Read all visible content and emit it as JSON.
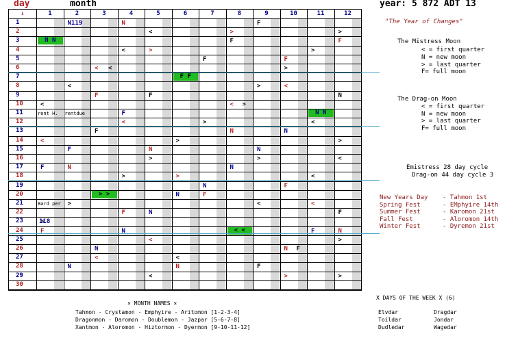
{
  "header": {
    "day_label": "day",
    "month_label": "month",
    "year_label": "year: 5 872 ADT 13"
  },
  "grid": {
    "corner_arrow": "↓",
    "columns": [
      "1",
      "2",
      "3",
      "4",
      "5",
      "6",
      "7",
      "8",
      "9",
      "10",
      "11",
      "12"
    ],
    "rows": [
      "1",
      "2",
      "3",
      "4",
      "5",
      "6",
      "7",
      "8",
      "9",
      "10",
      "11",
      "12",
      "13",
      "14",
      "15",
      "16",
      "17",
      "18",
      "19",
      "20",
      "21",
      "22",
      "23",
      "24",
      "25",
      "26",
      "27",
      "28",
      "29",
      "30"
    ],
    "notes": {
      "n119": "N119",
      "rent": "rent H.",
      "rentdue": "rentdue",
      "bard": "Bard per",
      "n118": "118"
    }
  },
  "marks": [
    {
      "row": 1,
      "col": 2,
      "t": "N119",
      "c": "#00008b"
    },
    {
      "row": 1,
      "col": 4,
      "t": "N",
      "c": "#b22222"
    },
    {
      "row": 1,
      "col": 9,
      "t": "F",
      "c": "#000"
    },
    {
      "row": 2,
      "col": 5,
      "t": "<",
      "c": "#000"
    },
    {
      "row": 2,
      "col": 8,
      "t": ">",
      "c": "#b22222"
    },
    {
      "row": 2,
      "col": 12,
      "t": ">",
      "c": "#000"
    },
    {
      "row": 3,
      "col": 8,
      "t": "F",
      "c": "#000"
    },
    {
      "row": 3,
      "col": 12,
      "t": "F",
      "c": "#b22222"
    },
    {
      "row": 4,
      "col": 4,
      "t": "<",
      "c": "#000"
    },
    {
      "row": 4,
      "col": 5,
      "t": ">",
      "c": "#b22222"
    },
    {
      "row": 4,
      "col": 11,
      "t": ">",
      "c": "#000"
    },
    {
      "row": 5,
      "col": 7,
      "t": "F",
      "c": "#000"
    },
    {
      "row": 5,
      "col": 10,
      "t": "F",
      "c": "#b22222"
    },
    {
      "row": 6,
      "col": 3,
      "t": "<",
      "c": "#b22222"
    },
    {
      "row": 6,
      "col": 3,
      "t": "<",
      "c": "#000",
      "dx": 20
    },
    {
      "row": 6,
      "col": 10,
      "t": ">",
      "c": "#000"
    },
    {
      "row": 8,
      "col": 2,
      "t": "<",
      "c": "#000"
    },
    {
      "row": 8,
      "col": 9,
      "t": ">",
      "c": "#000"
    },
    {
      "row": 8,
      "col": 10,
      "t": "<",
      "c": "#b22222"
    },
    {
      "row": 9,
      "col": 3,
      "t": "F",
      "c": "#b22222"
    },
    {
      "row": 9,
      "col": 5,
      "t": "F",
      "c": "#000"
    },
    {
      "row": 9,
      "col": 12,
      "t": "N",
      "c": "#000"
    },
    {
      "row": 10,
      "col": 1,
      "t": "<",
      "c": "#000"
    },
    {
      "row": 10,
      "col": 8,
      "t": "<",
      "c": "#b22222"
    },
    {
      "row": 10,
      "col": 8,
      "t": ">",
      "c": "#000",
      "dx": 18
    },
    {
      "row": 11,
      "col": 4,
      "t": "F",
      "c": "#00008b"
    },
    {
      "row": 12,
      "col": 4,
      "t": "<",
      "c": "#b22222"
    },
    {
      "row": 12,
      "col": 7,
      "t": ">",
      "c": "#000"
    },
    {
      "row": 12,
      "col": 11,
      "t": "<",
      "c": "#000"
    },
    {
      "row": 13,
      "col": 3,
      "t": "F",
      "c": "#000"
    },
    {
      "row": 13,
      "col": 8,
      "t": "N",
      "c": "#b22222"
    },
    {
      "row": 13,
      "col": 10,
      "t": "N",
      "c": "#00008b"
    },
    {
      "row": 14,
      "col": 1,
      "t": "<",
      "c": "#b22222"
    },
    {
      "row": 14,
      "col": 6,
      "t": ">",
      "c": "#000"
    },
    {
      "row": 14,
      "col": 12,
      "t": ">",
      "c": "#000"
    },
    {
      "row": 15,
      "col": 2,
      "t": "F",
      "c": "#00008b"
    },
    {
      "row": 15,
      "col": 5,
      "t": "N",
      "c": "#b22222"
    },
    {
      "row": 15,
      "col": 9,
      "t": "N",
      "c": "#00008b"
    },
    {
      "row": 16,
      "col": 5,
      "t": ">",
      "c": "#000"
    },
    {
      "row": 16,
      "col": 9,
      "t": ">",
      "c": "#000"
    },
    {
      "row": 16,
      "col": 12,
      "t": "<",
      "c": "#000"
    },
    {
      "row": 17,
      "col": 1,
      "t": "F",
      "c": "#00008b"
    },
    {
      "row": 17,
      "col": 2,
      "t": "N",
      "c": "#b22222"
    },
    {
      "row": 17,
      "col": 8,
      "t": "N",
      "c": "#00008b"
    },
    {
      "row": 18,
      "col": 4,
      "t": ">",
      "c": "#000"
    },
    {
      "row": 18,
      "col": 6,
      "t": ">",
      "c": "#b22222"
    },
    {
      "row": 18,
      "col": 11,
      "t": "<",
      "c": "#000"
    },
    {
      "row": 19,
      "col": 7,
      "t": "N",
      "c": "#00008b"
    },
    {
      "row": 19,
      "col": 10,
      "t": "F",
      "c": "#b22222"
    },
    {
      "row": 20,
      "col": 6,
      "t": "N",
      "c": "#00008b"
    },
    {
      "row": 20,
      "col": 7,
      "t": "F",
      "c": "#b22222"
    },
    {
      "row": 21,
      "col": 2,
      "t": ">",
      "c": "#000"
    },
    {
      "row": 21,
      "col": 9,
      "t": "<",
      "c": "#000"
    },
    {
      "row": 21,
      "col": 11,
      "t": "<",
      "c": "#b22222"
    },
    {
      "row": 22,
      "col": 4,
      "t": "F",
      "c": "#b22222"
    },
    {
      "row": 22,
      "col": 5,
      "t": "N",
      "c": "#00008b"
    },
    {
      "row": 22,
      "col": 12,
      "t": "F",
      "c": "#000"
    },
    {
      "row": 23,
      "col": 1,
      "t": ">",
      "c": "#000"
    },
    {
      "row": 24,
      "col": 1,
      "t": "F",
      "c": "#b22222"
    },
    {
      "row": 24,
      "col": 4,
      "t": "N",
      "c": "#00008b"
    },
    {
      "row": 24,
      "col": 11,
      "t": "F",
      "c": "#00008b"
    },
    {
      "row": 24,
      "col": 12,
      "t": "N",
      "c": "#b22222"
    },
    {
      "row": 25,
      "col": 5,
      "t": "<",
      "c": "#b22222"
    },
    {
      "row": 25,
      "col": 12,
      "t": ">",
      "c": "#000"
    },
    {
      "row": 26,
      "col": 3,
      "t": "N",
      "c": "#00008b"
    },
    {
      "row": 26,
      "col": 10,
      "t": "N",
      "c": "#b22222"
    },
    {
      "row": 26,
      "col": 10,
      "t": "F",
      "c": "#000",
      "dx": 18
    },
    {
      "row": 27,
      "col": 3,
      "t": "<",
      "c": "#b22222"
    },
    {
      "row": 27,
      "col": 6,
      "t": "<",
      "c": "#000"
    },
    {
      "row": 28,
      "col": 2,
      "t": "N",
      "c": "#00008b"
    },
    {
      "row": 28,
      "col": 6,
      "t": "N",
      "c": "#b22222"
    },
    {
      "row": 28,
      "col": 9,
      "t": "F",
      "c": "#000"
    },
    {
      "row": 29,
      "col": 5,
      "t": "<",
      "c": "#000"
    },
    {
      "row": 29,
      "col": 10,
      "t": ">",
      "c": "#b22222"
    },
    {
      "row": 29,
      "col": 12,
      "t": ">",
      "c": "#000"
    }
  ],
  "green_blocks": [
    {
      "row": 3,
      "col": 1,
      "t": "N N",
      "c": "#00008b"
    },
    {
      "row": 7,
      "col": 6,
      "t": "F F",
      "c": "#000"
    },
    {
      "row": 11,
      "col": 11,
      "t": "N N",
      "c": "#00008b"
    },
    {
      "row": 20,
      "col": 3,
      "t": "> >",
      "c": "#000"
    },
    {
      "row": 24,
      "col": 8,
      "t": "< <",
      "c": "#000"
    }
  ],
  "legend": {
    "year_title": "\"The Year of Changes\"",
    "mistress_title": "The Mistress Moon",
    "mistress_items": [
      "< = first quarter",
      "N = new moon",
      "> = last quarter",
      "F= full moon"
    ],
    "dragon_title": "The Drag-on Moon",
    "dragon_items": [
      "< = first quarter",
      "N = new moon",
      "> = last quarter",
      "F= full moon"
    ],
    "cycle1": "Emistress 28 day cycle",
    "cycle2": "Drag-on 44 day cycle 3"
  },
  "festivals": [
    {
      "name": "New Years Day",
      "date": "- Tahmon 1st"
    },
    {
      "name": "Spring Fest",
      "date": "- EMphyire 14th"
    },
    {
      "name": "Summer Fest",
      "date": "- Karomon 21st"
    },
    {
      "name": "Fall Fest",
      "date": "- Aloromon 14th"
    },
    {
      "name": "Winter Fest",
      "date": "- Dyremon 21st"
    }
  ],
  "month_names": {
    "title": "× MONTH NAMES ×",
    "lines": [
      "Tahmon - Crystamon - Emphyire - Aritomon  [1-2-3-4]",
      "Dragonmon - Daromon - Doublemon - Jazpar  [5-6-7-8]",
      "Xantmon - Aloromon - Hiztormon - Dyermon  [9-10-11-12]"
    ]
  },
  "days_of_week": {
    "title": "X DAYS OF THE WEEK X (6)",
    "col1": [
      "Elvdar",
      "Toildar",
      "Dudledar"
    ],
    "col2": [
      "Dragdar",
      "Jondar",
      "Wagedar"
    ]
  }
}
